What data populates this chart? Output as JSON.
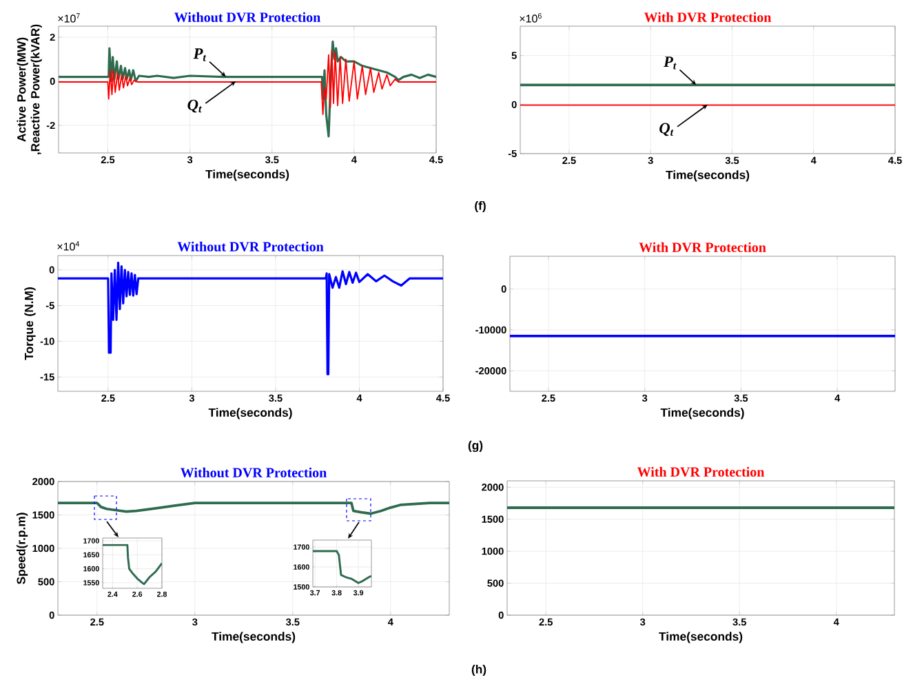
{
  "chart_data": [
    {
      "type": "line",
      "title": "Without DVR Protection",
      "xlabel": "Time(seconds)",
      "ylabel": "Active Power(MW) ,Reactive Power(kVAR)",
      "xlim": [
        2.2,
        4.5
      ],
      "ylim": [
        -3.25,
        2.5
      ],
      "xticks": [
        2.5,
        3,
        3.5,
        4,
        4.5
      ],
      "yticks": [
        -2,
        0,
        2
      ],
      "grid": true,
      "series": [
        {
          "color": "#2e6b4f",
          "x": [
            2.2,
            2.5,
            2.505,
            2.51,
            2.52,
            2.53,
            2.54,
            2.555,
            2.565,
            2.58,
            2.59,
            2.605,
            2.615,
            2.63,
            2.64,
            2.655,
            2.67,
            2.69,
            2.75,
            2.8,
            2.9,
            3.0,
            3.2,
            3.5,
            3.8,
            3.805,
            3.81,
            3.82,
            3.83,
            3.845,
            3.86,
            3.87,
            3.88,
            3.89,
            3.9,
            3.92,
            3.95,
            4.0,
            4.05,
            4.1,
            4.15,
            4.2,
            4.25,
            4.27,
            4.3,
            4.35,
            4.4,
            4.45,
            4.5
          ],
          "values": [
            0.2,
            0.2,
            0.2,
            1.5,
            0,
            1.1,
            0.1,
            0.9,
            0.1,
            0.7,
            0.1,
            0.6,
            0.1,
            0.5,
            0.05,
            0.5,
            0,
            0.25,
            0.2,
            0.25,
            0.15,
            0.25,
            0.2,
            0.2,
            0.2,
            0.2,
            -0.8,
            0.5,
            -1.5,
            -2.5,
            0.5,
            1.8,
            1.0,
            1.5,
            0.9,
            1.1,
            0.9,
            0.9,
            0.7,
            0.6,
            0.5,
            0.4,
            0.2,
            0.05,
            0.2,
            0.3,
            0.15,
            0.3,
            0.2
          ]
        },
        {
          "color": "#ff0000",
          "x": [
            2.2,
            2.5,
            2.505,
            2.515,
            2.525,
            2.535,
            2.545,
            2.56,
            2.57,
            2.585,
            2.595,
            2.61,
            2.62,
            2.635,
            2.645,
            2.66,
            2.68,
            3.8,
            3.81,
            3.82,
            3.83,
            3.845,
            3.855,
            3.865,
            3.875,
            3.885,
            3.9,
            3.915,
            3.93,
            3.95,
            3.97,
            4.0,
            4.02,
            4.05,
            4.07,
            4.1,
            4.12,
            4.15,
            4.17,
            4.2,
            4.22,
            4.25,
            4.27,
            4.5
          ],
          "values": [
            -0.03,
            -0.03,
            -0.8,
            0.5,
            -0.6,
            0.5,
            -0.5,
            0.4,
            -0.4,
            0.3,
            -0.3,
            0.25,
            -0.2,
            0.15,
            -0.15,
            0.05,
            -0.03,
            -0.03,
            -1.5,
            -0.3,
            -0.8,
            1.2,
            -1.2,
            1.4,
            -1.0,
            1.3,
            -1.1,
            1.1,
            -1.0,
            1.0,
            -0.9,
            0.9,
            -0.8,
            0.7,
            -0.6,
            0.6,
            -0.5,
            0.4,
            -0.35,
            0.3,
            -0.2,
            0.1,
            -0.03,
            -0.03
          ]
        }
      ],
      "annotations": [
        "×10$^{7}$",
        {
          "text": "P$_{t}$",
          "x": 3.22,
          "y": 0.2
        },
        {
          "text": "Q$_{t}$",
          "x": 3.28,
          "y": 0
        }
      ]
    },
    {
      "type": "line",
      "title": "With DVR Protection",
      "xlabel": "Time(seconds)",
      "xlim": [
        2.2,
        4.5
      ],
      "ylim": [
        -5,
        8
      ],
      "xticks": [
        2.5,
        3,
        3.5,
        4,
        4.5
      ],
      "yticks": [
        -5,
        0,
        5
      ],
      "grid": true,
      "series": [
        {
          "color": "#2e6b4f",
          "x": [
            2.2,
            4.5
          ],
          "values": [
            2,
            2
          ]
        },
        {
          "color": "#ff0000",
          "x": [
            2.2,
            4.5
          ],
          "values": [
            -0.05,
            -0.05
          ]
        }
      ],
      "annotations": [
        "×10$^{6}$",
        "(f)",
        {
          "text": "P$_{t}$",
          "x": 3.28,
          "y": 2
        },
        {
          "text": "Q$_{t}$",
          "x": 3.35,
          "y": 0
        }
      ]
    },
    {
      "type": "line",
      "title": "Without DVR Protection",
      "xlabel": "Time(seconds)",
      "ylabel": "Torque (N.M)",
      "xlim": [
        2.2,
        4.5
      ],
      "ylim": [
        -17,
        2
      ],
      "xticks": [
        2.5,
        3,
        3.5,
        4,
        4.5
      ],
      "yticks": [
        -15,
        -10,
        -5,
        0
      ],
      "grid": true,
      "series": [
        {
          "color": "#0000ff",
          "x": [
            2.2,
            2.5,
            2.505,
            2.515,
            2.52,
            2.53,
            2.54,
            2.55,
            2.56,
            2.57,
            2.58,
            2.59,
            2.6,
            2.61,
            2.62,
            2.63,
            2.64,
            2.65,
            2.66,
            2.67,
            2.68,
            3.8,
            3.805,
            3.81,
            3.815,
            3.82,
            3.84,
            3.86,
            3.88,
            3.9,
            3.92,
            3.94,
            3.96,
            3.98,
            4.0,
            4.05,
            4.1,
            4.15,
            4.2,
            4.25,
            4.3,
            4.5
          ],
          "values": [
            -1.2,
            -1.2,
            -11.6,
            -11.6,
            -0.5,
            -7,
            0,
            -7,
            1,
            -5.5,
            0.5,
            -4.7,
            0,
            -3.7,
            -0.3,
            -3.5,
            -0.5,
            -3.6,
            -0.7,
            -3.4,
            -1.2,
            -1.2,
            -0.5,
            -14.6,
            -14.6,
            -0.6,
            -2.5,
            -1.0,
            -2.5,
            -0.2,
            -2.0,
            -0.3,
            -1.8,
            -0.4,
            -1.7,
            -0.6,
            -1.6,
            -0.8,
            -1.6,
            -2.2,
            -1.2,
            -1.2
          ]
        }
      ],
      "annotations": [
        "×10$^{4}$"
      ]
    },
    {
      "type": "line",
      "title": "With DVR Protection",
      "xlabel": "Time(seconds)",
      "xlim": [
        2.3,
        4.3
      ],
      "ylim": [
        -25000,
        8000
      ],
      "xticks": [
        2.5,
        3,
        3.5,
        4
      ],
      "yticks": [
        -20000,
        -10000,
        0
      ],
      "grid": true,
      "series": [
        {
          "color": "#0000ff",
          "x": [
            2.3,
            4.3
          ],
          "values": [
            -11500,
            -11500
          ]
        }
      ],
      "annotations": [
        "(g)"
      ]
    },
    {
      "type": "line",
      "title": "Without DVR Protection",
      "xlabel": "Time(seconds)",
      "ylabel": "Speed(r.p.m)",
      "xlim": [
        2.3,
        4.3
      ],
      "ylim": [
        0,
        2000
      ],
      "xticks": [
        2.5,
        3,
        3.5,
        4
      ],
      "yticks": [
        0,
        500,
        1000,
        1500,
        2000
      ],
      "grid": true,
      "series": [
        {
          "color": "#2e6b4f",
          "x": [
            2.3,
            2.5,
            2.52,
            2.55,
            2.6,
            2.65,
            2.7,
            2.8,
            2.9,
            3.0,
            3.1,
            3.8,
            3.81,
            3.85,
            3.9,
            3.95,
            4.0,
            4.05,
            4.2,
            4.3
          ],
          "values": [
            1680,
            1680,
            1620,
            1590,
            1570,
            1550,
            1560,
            1600,
            1640,
            1680,
            1680,
            1680,
            1560,
            1540,
            1520,
            1560,
            1610,
            1650,
            1680,
            1680
          ]
        }
      ]
    },
    {
      "type": "line",
      "title": "With DVR Protection",
      "xlabel": "Time(seconds)",
      "xlim": [
        2.3,
        4.3
      ],
      "ylim": [
        0,
        2100
      ],
      "xticks": [
        2.5,
        3,
        3.5,
        4
      ],
      "yticks": [
        0,
        500,
        1000,
        1500,
        2000
      ],
      "grid": true,
      "series": [
        {
          "color": "#2e6b4f",
          "x": [
            2.3,
            4.3
          ],
          "values": [
            1680,
            1680
          ]
        }
      ],
      "annotations": [
        "(h)"
      ]
    },
    {
      "type": "line",
      "xlim": [
        2.32,
        2.8
      ],
      "ylim": [
        1530,
        1710
      ],
      "xticks": [
        2.4,
        2.6,
        2.8
      ],
      "yticks": [
        1550,
        1600,
        1650,
        1700
      ],
      "grid": true,
      "series": [
        {
          "color": "#2e6b4f",
          "x": [
            2.32,
            2.52,
            2.525,
            2.53,
            2.535,
            2.56,
            2.6,
            2.64,
            2.655,
            2.7,
            2.75,
            2.8
          ],
          "values": [
            1685,
            1685,
            1640,
            1620,
            1600,
            1585,
            1565,
            1550,
            1545,
            1570,
            1590,
            1620
          ]
        }
      ]
    },
    {
      "type": "line",
      "xlim": [
        3.69,
        3.96
      ],
      "ylim": [
        1500,
        1735
      ],
      "xticks": [
        3.7,
        3.8,
        3.9
      ],
      "yticks": [
        1500,
        1600,
        1700
      ],
      "grid": true,
      "series": [
        {
          "color": "#2e6b4f",
          "x": [
            3.69,
            3.8,
            3.81,
            3.82,
            3.84,
            3.87,
            3.9,
            3.92,
            3.95,
            3.96
          ],
          "values": [
            1680,
            1680,
            1660,
            1560,
            1550,
            1540,
            1520,
            1530,
            1550,
            1555
          ]
        }
      ]
    }
  ]
}
